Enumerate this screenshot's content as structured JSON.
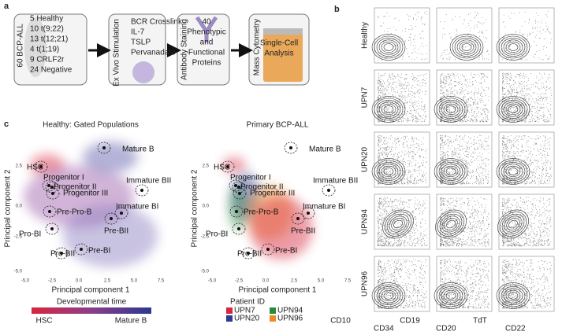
{
  "panel_a": {
    "label": "a",
    "cohort": {
      "title": "60 BCP-ALL",
      "lines": [
        "5 Healthy",
        "10 t(9;22)",
        "13 t(12;21)",
        "4 t(1;19)",
        "9 CRLF2r",
        "24 Negative"
      ]
    },
    "stimulation": {
      "title": "Ex Vivo Stimulation",
      "lines": [
        "BCR Crosslink",
        "IL-7",
        "TSLP",
        "Pervanadate"
      ]
    },
    "staining": {
      "title": "Antibody Staining",
      "lines": [
        "40",
        "Phenotypic",
        "and",
        "Functional",
        "Proteins"
      ]
    },
    "cytometry": {
      "title": "Mass Cytometry",
      "lines": [
        "Single-Cell",
        "Analysis"
      ]
    }
  },
  "panel_b": {
    "label": "b",
    "rows": [
      "Healthy",
      "UPN7",
      "UPN20",
      "UPN94",
      "UPN96"
    ],
    "axes": [
      "CD10",
      "CD34",
      "CD19",
      "CD20",
      "TdT",
      "CD22"
    ]
  },
  "panel_c": {
    "label": "c",
    "left_title": "Healthy: Gated Populations",
    "right_title": "Primary BCP-ALL",
    "y_label": "Principal component 2",
    "x_label": "Principal component 1",
    "y_ticks": [
      "2.5",
      "0.0",
      "-2.5",
      "-5.0"
    ],
    "x_ticks": [
      "-5.0",
      "-2.5",
      "0.0",
      "2.5",
      "5.0",
      "7.5"
    ],
    "populations": [
      "HSC",
      "Progenitor I",
      "Progenitor II",
      "Progenitor III",
      "Pre-Pro-B",
      "Pro-BI",
      "Pro-BII",
      "Pre-BI",
      "Pre-BII",
      "Immature BI",
      "Immature BII",
      "Mature B"
    ],
    "gradient_legend": {
      "title": "Developmental time",
      "start": "HSC",
      "end": "Mature B"
    },
    "patient_legend": {
      "title": "Patient ID",
      "items": [
        {
          "name": "UPN7",
          "color": "#d7263d"
        },
        {
          "name": "UPN94",
          "color": "#2a8a3c"
        },
        {
          "name": "UPN20",
          "color": "#2b3990"
        },
        {
          "name": "UPN96",
          "color": "#f08a24"
        }
      ]
    }
  }
}
